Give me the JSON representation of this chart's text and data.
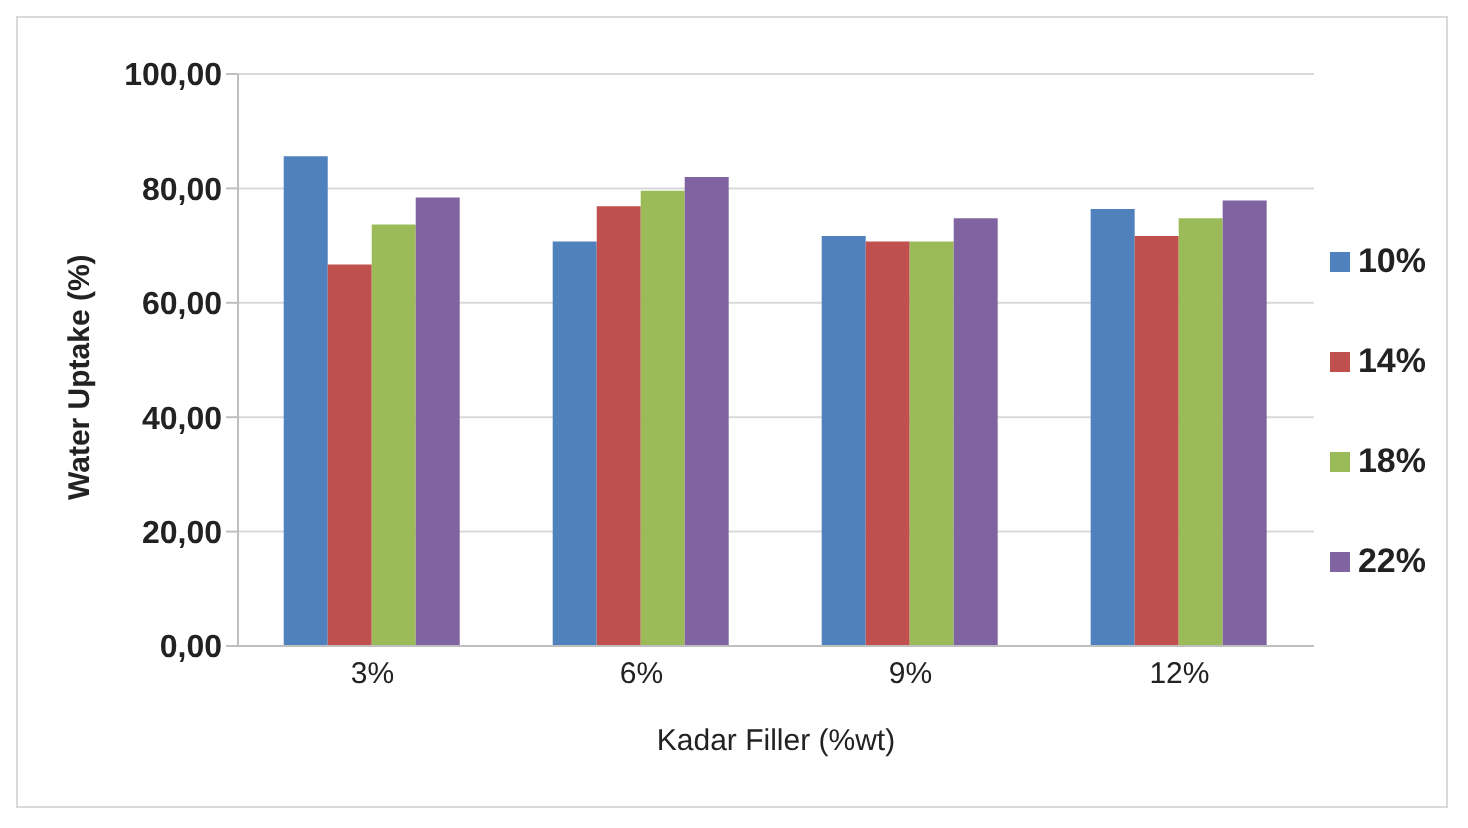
{
  "chart_data": {
    "type": "bar",
    "xlabel": "Kadar Filler (%wt)",
    "ylabel": "Water Uptake (%)",
    "categories": [
      "3%",
      "6%",
      "9%",
      "12%"
    ],
    "series": [
      {
        "name": "10%",
        "color": "#4f81bd",
        "values": [
          85.6,
          70.7,
          71.7,
          76.4
        ]
      },
      {
        "name": "14%",
        "color": "#c0504d",
        "values": [
          66.7,
          76.9,
          70.7,
          71.7
        ]
      },
      {
        "name": "18%",
        "color": "#9bbb59",
        "values": [
          73.7,
          79.6,
          70.7,
          74.8
        ]
      },
      {
        "name": "22%",
        "color": "#8064a2",
        "values": [
          78.4,
          82,
          74.8,
          77.9
        ]
      }
    ],
    "ylim": [
      0,
      100
    ],
    "yticks": [
      {
        "value": 0,
        "label": "0,00"
      },
      {
        "value": 20,
        "label": "20,00"
      },
      {
        "value": 40,
        "label": "40,00"
      },
      {
        "value": 60,
        "label": "60,00"
      },
      {
        "value": 80,
        "label": "80,00"
      },
      {
        "value": 100,
        "label": "100,00"
      }
    ],
    "grid": "y",
    "legend": "right"
  }
}
